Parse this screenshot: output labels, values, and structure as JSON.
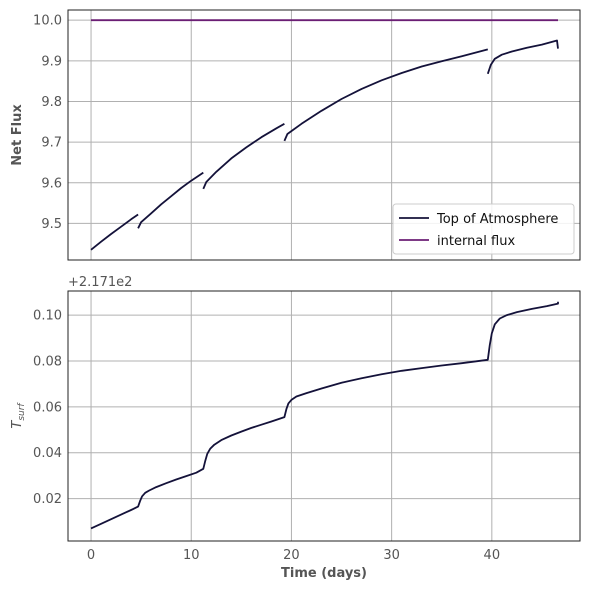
{
  "chart_data": [
    {
      "type": "line",
      "ylabel": "Net Flux",
      "xlim": [
        -2.3,
        48.8
      ],
      "ylim": [
        9.41,
        10.025
      ],
      "yticks": [
        9.5,
        9.6,
        9.7,
        9.8,
        9.9,
        10.0
      ],
      "ytick_labels": [
        "9.5",
        "9.6",
        "9.7",
        "9.8",
        "9.9",
        "10.0"
      ],
      "xticks": [
        0,
        10,
        20,
        30,
        40
      ],
      "grid": true,
      "legend_position": "lower-right",
      "colors": {
        "toa": "#14123a",
        "internal": "#6b1e74"
      },
      "series": [
        {
          "name": "Top of Atmosphere",
          "segments": [
            {
              "x": [
                0,
                1,
                2,
                3,
                4,
                4.7
              ],
              "y": [
                9.435,
                9.455,
                9.474,
                9.492,
                9.51,
                9.522
              ]
            },
            {
              "x": [
                4.7,
                5.0,
                6,
                7,
                8,
                9,
                10,
                11.2
              ],
              "y": [
                9.488,
                9.503,
                9.525,
                9.547,
                9.567,
                9.587,
                9.605,
                9.625
              ]
            },
            {
              "x": [
                11.2,
                11.5,
                12.5,
                14,
                15.5,
                17,
                18.5,
                19.3
              ],
              "y": [
                9.585,
                9.602,
                9.627,
                9.66,
                9.687,
                9.712,
                9.734,
                9.745
              ]
            },
            {
              "x": [
                19.3,
                19.6,
                21,
                23,
                25,
                27,
                29,
                31,
                33,
                35,
                37,
                39.6
              ],
              "y": [
                9.703,
                9.72,
                9.745,
                9.777,
                9.806,
                9.831,
                9.852,
                9.87,
                9.886,
                9.899,
                9.911,
                9.928
              ]
            },
            {
              "x": [
                39.6,
                39.9,
                40.3,
                41,
                42,
                43.5,
                45,
                46.5,
                46.6
              ],
              "y": [
                9.868,
                9.89,
                9.905,
                9.915,
                9.923,
                9.932,
                9.94,
                9.95,
                9.93
              ]
            }
          ]
        },
        {
          "name": "internal flux",
          "segments": [
            {
              "x": [
                0,
                46.6
              ],
              "y": [
                10.0,
                10.0
              ]
            }
          ]
        }
      ]
    },
    {
      "type": "line",
      "xlabel": "Time (days)",
      "ylabel_main": "T",
      "ylabel_sub": "surf",
      "offset_text": "+2.171e2",
      "xlim": [
        -2.3,
        48.8
      ],
      "ylim": [
        0.0015,
        0.1105
      ],
      "yticks": [
        0.02,
        0.04,
        0.06,
        0.08,
        0.1
      ],
      "ytick_labels": [
        "0.02",
        "0.04",
        "0.06",
        "0.08",
        "0.10"
      ],
      "xticks": [
        0,
        10,
        20,
        30,
        40
      ],
      "xtick_labels": [
        "0",
        "10",
        "20",
        "30",
        "40"
      ],
      "grid": true,
      "colors": {
        "line": "#14123a"
      },
      "series": [
        {
          "name": "",
          "x": [
            0,
            1,
            2,
            3,
            4,
            4.7,
            4.9,
            5.1,
            5.4,
            5.8,
            6.5,
            7.5,
            8.5,
            9.5,
            10.5,
            11.2,
            11.4,
            11.6,
            11.9,
            12.3,
            13,
            14,
            15,
            16,
            17,
            18,
            19.3,
            19.5,
            19.7,
            20,
            20.5,
            21.5,
            23,
            25,
            27,
            29,
            31,
            33,
            35,
            37,
            39.6,
            39.8,
            40,
            40.3,
            40.8,
            41.5,
            42.5,
            44,
            45.5,
            46.6,
            46.6
          ],
          "y": [
            0.007,
            0.009,
            0.011,
            0.013,
            0.015,
            0.0165,
            0.019,
            0.021,
            0.0225,
            0.0235,
            0.025,
            0.0267,
            0.0283,
            0.0298,
            0.0313,
            0.033,
            0.0365,
            0.0395,
            0.0418,
            0.0435,
            0.0455,
            0.0475,
            0.0492,
            0.0508,
            0.0522,
            0.0536,
            0.0555,
            0.059,
            0.0615,
            0.063,
            0.0645,
            0.066,
            0.068,
            0.0705,
            0.0725,
            0.0742,
            0.0757,
            0.0769,
            0.078,
            0.079,
            0.0805,
            0.087,
            0.092,
            0.096,
            0.0985,
            0.1,
            0.1013,
            0.1027,
            0.1039,
            0.105,
            0.1058
          ]
        }
      ]
    }
  ]
}
